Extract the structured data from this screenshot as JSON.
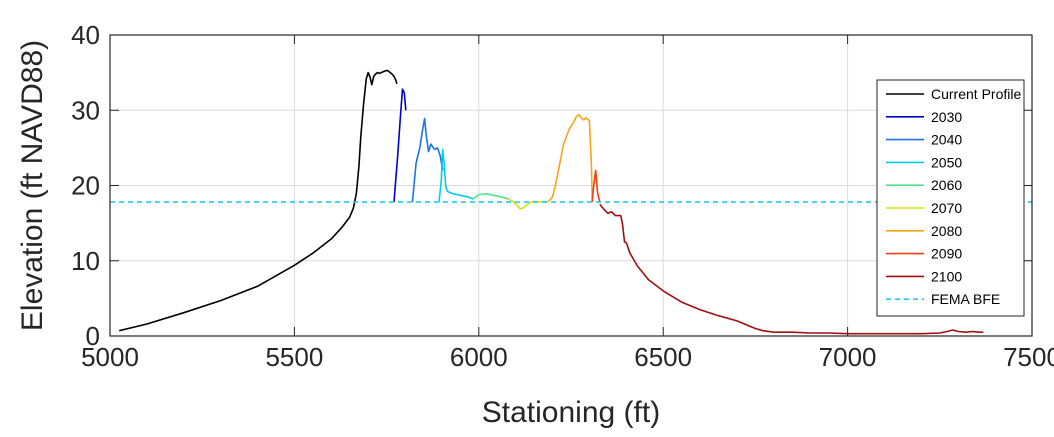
{
  "chart_data": {
    "type": "line",
    "xlabel": "Stationing (ft)",
    "ylabel": "Elevation (ft NAVD88)",
    "xlim": [
      5000,
      7500
    ],
    "ylim": [
      0,
      40
    ],
    "xticks": [
      5000,
      5500,
      6000,
      6500,
      7000,
      7500
    ],
    "yticks": [
      0,
      10,
      20,
      30,
      40
    ],
    "grid": true,
    "legend_position": "top-right",
    "series": [
      {
        "name": "Current Profile",
        "color": "#000000",
        "style": "solid",
        "x": [
          5025,
          5100,
          5200,
          5300,
          5400,
          5500,
          5550,
          5600,
          5630,
          5650,
          5660,
          5668,
          5675,
          5680,
          5688,
          5695,
          5700,
          5705,
          5710,
          5715,
          5720,
          5725,
          5730,
          5740,
          5750,
          5755,
          5760,
          5765,
          5770,
          5775,
          5778
        ],
        "y": [
          0.7,
          1.6,
          3.1,
          4.7,
          6.6,
          9.4,
          11.0,
          12.9,
          14.5,
          15.8,
          17.0,
          19.0,
          22.5,
          26.5,
          31.0,
          34.2,
          35.0,
          34.4,
          33.4,
          34.5,
          34.8,
          35.0,
          34.9,
          35.1,
          35.3,
          35.2,
          35.0,
          34.8,
          34.5,
          34.0,
          33.5
        ]
      },
      {
        "name": "2030",
        "color": "#0000cc",
        "style": "solid",
        "x": [
          5770,
          5780,
          5788,
          5793,
          5798,
          5802
        ],
        "y": [
          17.8,
          24.0,
          29.5,
          32.8,
          32.3,
          30.0
        ]
      },
      {
        "name": "2040",
        "color": "#1a75e0",
        "style": "solid",
        "x": [
          5820,
          5830,
          5840,
          5848,
          5853,
          5858,
          5864,
          5870,
          5880,
          5888,
          5895,
          5902
        ],
        "y": [
          17.8,
          23.0,
          25.0,
          27.5,
          28.9,
          26.5,
          24.5,
          25.5,
          24.8,
          25.0,
          24.0,
          22.0
        ]
      },
      {
        "name": "2050",
        "color": "#00ccee",
        "style": "solid",
        "x": [
          5892,
          5898,
          5902,
          5906,
          5910,
          5915,
          5930,
          5950,
          5970,
          5985
        ],
        "y": [
          17.8,
          20.5,
          24.8,
          23.0,
          20.0,
          19.2,
          18.9,
          18.7,
          18.5,
          18.2
        ]
      },
      {
        "name": "2060",
        "color": "#55e090",
        "style": "solid",
        "x": [
          5985,
          6000,
          6020,
          6040,
          6060,
          6080
        ],
        "y": [
          18.2,
          18.8,
          18.9,
          18.7,
          18.5,
          18.2
        ]
      },
      {
        "name": "2070",
        "color": "#d8e010",
        "style": "solid",
        "x": [
          6080,
          6095,
          6105,
          6112,
          6120,
          6135,
          6150,
          6170,
          6190
        ],
        "y": [
          18.2,
          17.8,
          17.3,
          16.9,
          17.0,
          17.6,
          17.9,
          17.8,
          17.9
        ]
      },
      {
        "name": "2080",
        "color": "#f8a418",
        "style": "solid",
        "x": [
          6190,
          6200,
          6210,
          6220,
          6230,
          6245,
          6258,
          6265,
          6272,
          6278,
          6285,
          6290,
          6300,
          6305,
          6308
        ],
        "y": [
          17.9,
          18.5,
          20.5,
          23.0,
          25.5,
          27.5,
          28.5,
          29.2,
          29.4,
          29.0,
          28.7,
          29.0,
          28.6,
          23.0,
          17.8
        ]
      },
      {
        "name": "2090",
        "color": "#f04010",
        "style": "solid",
        "x": [
          6307,
          6313,
          6317,
          6322,
          6328
        ],
        "y": [
          17.8,
          20.5,
          22.0,
          19.0,
          17.8
        ]
      },
      {
        "name": "2100",
        "color": "#a01010",
        "style": "solid",
        "x": [
          6328,
          6340,
          6350,
          6360,
          6370,
          6385,
          6390,
          6395,
          6400,
          6410,
          6430,
          6460,
          6500,
          6550,
          6600,
          6650,
          6700,
          6730,
          6750,
          6770,
          6800,
          6850,
          6900,
          6950,
          7000,
          7050,
          7100,
          7150,
          7200,
          7250,
          7270,
          7285,
          7300,
          7320,
          7340,
          7355,
          7368
        ],
        "y": [
          17.5,
          16.8,
          16.3,
          16.5,
          16.0,
          16.0,
          14.8,
          12.5,
          12.4,
          11.0,
          9.3,
          7.5,
          6.0,
          4.5,
          3.5,
          2.7,
          2.0,
          1.4,
          1.0,
          0.7,
          0.5,
          0.5,
          0.4,
          0.4,
          0.3,
          0.3,
          0.3,
          0.3,
          0.3,
          0.4,
          0.6,
          0.8,
          0.6,
          0.5,
          0.6,
          0.5,
          0.5
        ]
      },
      {
        "name": "FEMA BFE",
        "color": "#22ccee",
        "style": "dashed",
        "x": [
          5000,
          7500
        ],
        "y": [
          17.8,
          17.8
        ]
      }
    ]
  }
}
